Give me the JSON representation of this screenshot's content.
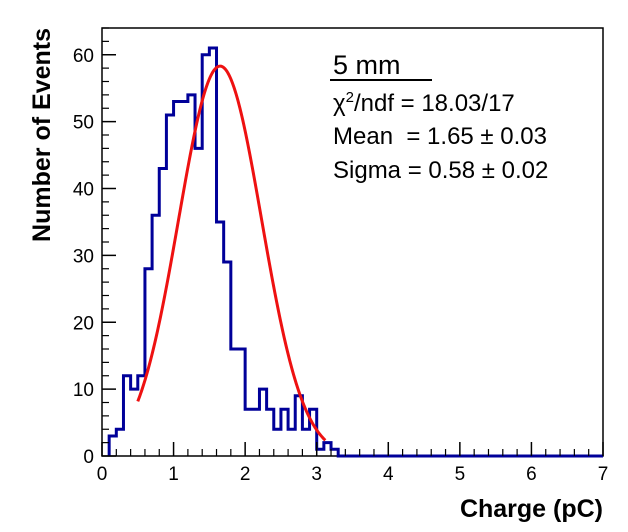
{
  "chart_data": {
    "type": "histogram",
    "title": "",
    "xlabel": "Charge (pC)",
    "ylabel": "Number of Events",
    "xlim": [
      0,
      7
    ],
    "ylim": [
      0,
      64
    ],
    "x_ticks": [
      0,
      1,
      2,
      3,
      4,
      5,
      6,
      7
    ],
    "y_ticks": [
      0,
      10,
      20,
      30,
      40,
      50,
      60
    ],
    "grid": false,
    "bin_width": 0.1,
    "bin_start": 0.1,
    "counts": [
      3,
      4,
      12,
      10,
      12,
      28,
      36,
      43,
      51,
      53,
      53,
      54,
      46,
      60,
      61,
      35,
      29,
      16,
      16,
      7,
      7,
      10,
      7,
      4,
      7,
      4,
      9,
      4,
      7,
      1,
      2,
      1,
      0,
      0,
      0,
      0,
      0,
      0,
      0,
      0,
      0,
      0,
      0,
      0,
      0,
      0,
      0,
      0,
      0,
      0,
      0,
      0,
      0,
      0,
      0,
      0,
      0,
      0,
      0,
      0,
      0,
      0,
      0,
      0,
      0,
      0,
      0,
      0,
      0
    ],
    "fit": {
      "function": "gaus",
      "amplitude": 58.3,
      "mean": 1.65,
      "sigma": 0.58,
      "x_range": [
        0.5,
        3.12
      ]
    },
    "stats": {
      "title": "5 mm",
      "chi2_label": "/ndf = 18.03/17",
      "mean_label": "Mean  = 1.65 ± 0.03",
      "sigma_label": "Sigma = 0.58 ± 0.02"
    },
    "colors": {
      "histogram": "#000099",
      "fit": "#ee1111",
      "axis": "#000000"
    }
  }
}
